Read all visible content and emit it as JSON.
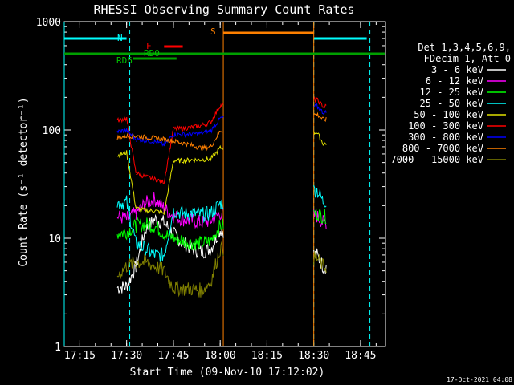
{
  "chart_data": {
    "type": "line",
    "title": "RHESSI Observing Summary Count Rates",
    "xlabel": "Start Time (09-Nov-10 17:12:02)",
    "ylabel": "Count Rate (s⁻¹ detector⁻¹)",
    "footer": "17-Oct-2021 04:08",
    "x_range": [
      "17:10",
      "18:53"
    ],
    "y_range": [
      1,
      1000
    ],
    "y_scale": "log",
    "x_ticks": [
      "17:15",
      "17:30",
      "17:45",
      "18:00",
      "18:15",
      "18:30",
      "18:45"
    ],
    "y_ticks": [
      "1",
      "10",
      "100",
      "1000"
    ],
    "legend_header": [
      "Det 1,3,4,5,6,9,",
      "FDecim 1, Att 0"
    ],
    "legend_position": "right",
    "flag_labels": {
      "N": "N",
      "S": "S",
      "F": "F",
      "RD0": "RD0",
      "RD6": "RD6"
    },
    "series": [
      {
        "name": "3 - 6 keV",
        "color": "#ffffff",
        "values": [
          [
            "17:27",
            3.5
          ],
          [
            "17:30",
            3.6
          ],
          [
            "17:33",
            5.5
          ],
          [
            "17:36",
            12
          ],
          [
            "17:39",
            15
          ],
          [
            "17:42",
            14
          ],
          [
            "17:45",
            11
          ],
          [
            "17:48",
            9
          ],
          [
            "17:51",
            8
          ],
          [
            "17:54",
            7.5
          ],
          [
            "17:57",
            8
          ],
          [
            "18:00",
            12
          ],
          [
            "18:31",
            7
          ],
          [
            "18:33",
            5.5
          ]
        ]
      },
      {
        "name": "6 - 12 keV",
        "color": "#ff00ff",
        "values": [
          [
            "17:27",
            16
          ],
          [
            "17:30",
            15
          ],
          [
            "17:33",
            17
          ],
          [
            "17:36",
            21
          ],
          [
            "17:39",
            23
          ],
          [
            "17:42",
            19
          ],
          [
            "17:45",
            16
          ],
          [
            "17:48",
            15
          ],
          [
            "17:51",
            14.5
          ],
          [
            "17:54",
            14
          ],
          [
            "17:57",
            14.5
          ],
          [
            "18:00",
            17
          ],
          [
            "18:31",
            16
          ],
          [
            "18:33",
            14
          ]
        ]
      },
      {
        "name": "12 - 25 keV",
        "color": "#00ff00",
        "values": [
          [
            "17:27",
            11
          ],
          [
            "17:30",
            11.5
          ],
          [
            "17:33",
            13
          ],
          [
            "17:36",
            13.5
          ],
          [
            "17:39",
            13
          ],
          [
            "17:42",
            11
          ],
          [
            "17:45",
            10
          ],
          [
            "17:48",
            9.5
          ],
          [
            "17:51",
            9
          ],
          [
            "17:54",
            9
          ],
          [
            "17:57",
            9.5
          ],
          [
            "18:00",
            13
          ],
          [
            "18:31",
            17
          ],
          [
            "18:33",
            16
          ]
        ]
      },
      {
        "name": "25 - 50 keV",
        "color": "#00ffff",
        "values": [
          [
            "17:27",
            21
          ],
          [
            "17:30",
            21.5
          ],
          [
            "17:33",
            9
          ],
          [
            "17:36",
            8
          ],
          [
            "17:39",
            7
          ],
          [
            "17:42",
            7
          ],
          [
            "17:45",
            18
          ],
          [
            "17:48",
            17
          ],
          [
            "17:51",
            17
          ],
          [
            "17:54",
            16.5
          ],
          [
            "17:57",
            17
          ],
          [
            "18:00",
            21
          ],
          [
            "18:31",
            28
          ],
          [
            "18:33",
            22
          ]
        ]
      },
      {
        "name": "50 - 100 keV",
        "color": "#e0e000",
        "values": [
          [
            "17:27",
            58
          ],
          [
            "17:30",
            62
          ],
          [
            "17:33",
            19
          ],
          [
            "17:36",
            18
          ],
          [
            "17:39",
            18
          ],
          [
            "17:42",
            17
          ],
          [
            "17:45",
            52
          ],
          [
            "17:48",
            52
          ],
          [
            "17:51",
            53
          ],
          [
            "17:54",
            53
          ],
          [
            "17:57",
            54
          ],
          [
            "18:00",
            68
          ],
          [
            "18:31",
            95
          ],
          [
            "18:33",
            75
          ]
        ]
      },
      {
        "name": "100 - 300 keV",
        "color": "#ff0000",
        "values": [
          [
            "17:27",
            122
          ],
          [
            "17:30",
            128
          ],
          [
            "17:33",
            40
          ],
          [
            "17:36",
            37
          ],
          [
            "17:39",
            35
          ],
          [
            "17:42",
            33
          ],
          [
            "17:45",
            102
          ],
          [
            "17:48",
            103
          ],
          [
            "17:51",
            106
          ],
          [
            "17:54",
            110
          ],
          [
            "17:57",
            118
          ],
          [
            "18:00",
            168
          ],
          [
            "18:31",
            190
          ],
          [
            "18:33",
            165
          ]
        ]
      },
      {
        "name": "300 - 800 keV",
        "color": "#0000ff",
        "values": [
          [
            "17:27",
            97
          ],
          [
            "17:30",
            99
          ],
          [
            "17:33",
            82
          ],
          [
            "17:36",
            80
          ],
          [
            "17:39",
            78
          ],
          [
            "17:42",
            73
          ],
          [
            "17:45",
            91
          ],
          [
            "17:48",
            91
          ],
          [
            "17:51",
            92
          ],
          [
            "17:54",
            93
          ],
          [
            "17:57",
            98
          ],
          [
            "18:00",
            128
          ],
          [
            "18:31",
            165
          ],
          [
            "18:33",
            145
          ]
        ]
      },
      {
        "name": "800 - 7000 keV",
        "color": "#ff8000",
        "values": [
          [
            "17:27",
            85
          ],
          [
            "17:30",
            88
          ],
          [
            "17:33",
            88
          ],
          [
            "17:36",
            86
          ],
          [
            "17:39",
            84
          ],
          [
            "17:42",
            82
          ],
          [
            "17:45",
            79
          ],
          [
            "17:48",
            76
          ],
          [
            "17:51",
            72
          ],
          [
            "17:54",
            68
          ],
          [
            "17:57",
            70
          ],
          [
            "18:00",
            98
          ],
          [
            "18:31",
            140
          ],
          [
            "18:33",
            125
          ]
        ]
      },
      {
        "name": "7000 - 15000 keV",
        "color": "#808000",
        "values": [
          [
            "17:27",
            4.5
          ],
          [
            "17:30",
            5.5
          ],
          [
            "17:33",
            6
          ],
          [
            "17:36",
            6
          ],
          [
            "17:39",
            5.5
          ],
          [
            "17:42",
            5
          ],
          [
            "17:45",
            3.5
          ],
          [
            "17:48",
            3.4
          ],
          [
            "17:51",
            3.4
          ],
          [
            "17:54",
            3.3
          ],
          [
            "17:57",
            4
          ],
          [
            "18:00",
            8
          ],
          [
            "18:31",
            6.5
          ],
          [
            "18:33",
            5.5
          ]
        ]
      }
    ],
    "segments": [
      [
        "17:27",
        "17:33"
      ],
      [
        "17:33",
        "17:45"
      ],
      [
        "17:45",
        "18:01"
      ],
      [
        "18:30",
        "18:34"
      ]
    ],
    "flags": {
      "night": [
        [
          "17:10",
          "17:31"
        ],
        [
          "18:30",
          "18:48"
        ]
      ],
      "saa": [
        [
          "18:01",
          "18:30"
        ]
      ],
      "flare": [
        [
          "17:42",
          "17:48"
        ]
      ],
      "rd0": [
        [
          "17:32",
          "17:46"
        ]
      ],
      "rd6": [
        [
          "17:10",
          "18:53"
        ]
      ]
    }
  }
}
